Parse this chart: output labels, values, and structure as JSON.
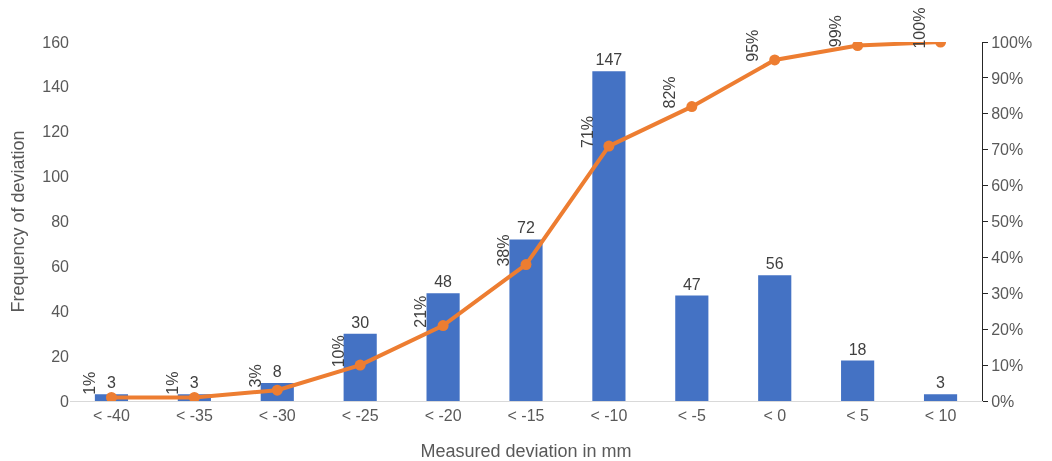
{
  "chart_data": {
    "type": "bar",
    "xlabel": "Measured deviation in mm",
    "ylabel": "Frequency of deviation",
    "categories": [
      "< -40",
      "< -35",
      "< -30",
      "< -25",
      "< -20",
      "< -15",
      "< -10",
      "< -5",
      "< 0",
      "< 5",
      "< 10"
    ],
    "series": [
      {
        "color": "#4472c4",
        "values": [
          3,
          3,
          8,
          30,
          48,
          72,
          147,
          47,
          56,
          18,
          3
        ],
        "value_labels": [
          "3",
          "3",
          "8",
          "30",
          "48",
          "72",
          "147",
          "47",
          "56",
          "18",
          "3"
        ]
      },
      {
        "type": "line",
        "axis": "y2",
        "color": "#ed7d31",
        "values": [
          1,
          1,
          3,
          10,
          21,
          38,
          71,
          82,
          95,
          99,
          100
        ],
        "value_labels": [
          "1%",
          "1%",
          "3%",
          "10%",
          "21%",
          "38%",
          "71%",
          "82%",
          "95%",
          "99%",
          "100%"
        ]
      }
    ],
    "ylim": [
      0,
      160
    ],
    "yticks": [
      0,
      20,
      40,
      60,
      80,
      100,
      120,
      140,
      160
    ],
    "y2lim": [
      0,
      100
    ],
    "y2ticks": [
      {
        "value": 0,
        "label": "0%"
      },
      {
        "value": 10,
        "label": "10%"
      },
      {
        "value": 20,
        "label": "20%"
      },
      {
        "value": 30,
        "label": "30%"
      },
      {
        "value": 40,
        "label": "40%"
      },
      {
        "value": 50,
        "label": "50%"
      },
      {
        "value": 60,
        "label": "60%"
      },
      {
        "value": 70,
        "label": "70%"
      },
      {
        "value": 80,
        "label": "80%"
      },
      {
        "value": 90,
        "label": "90%"
      },
      {
        "value": 100,
        "label": "100%"
      }
    ],
    "marker": "circle",
    "line_style": "solid"
  }
}
